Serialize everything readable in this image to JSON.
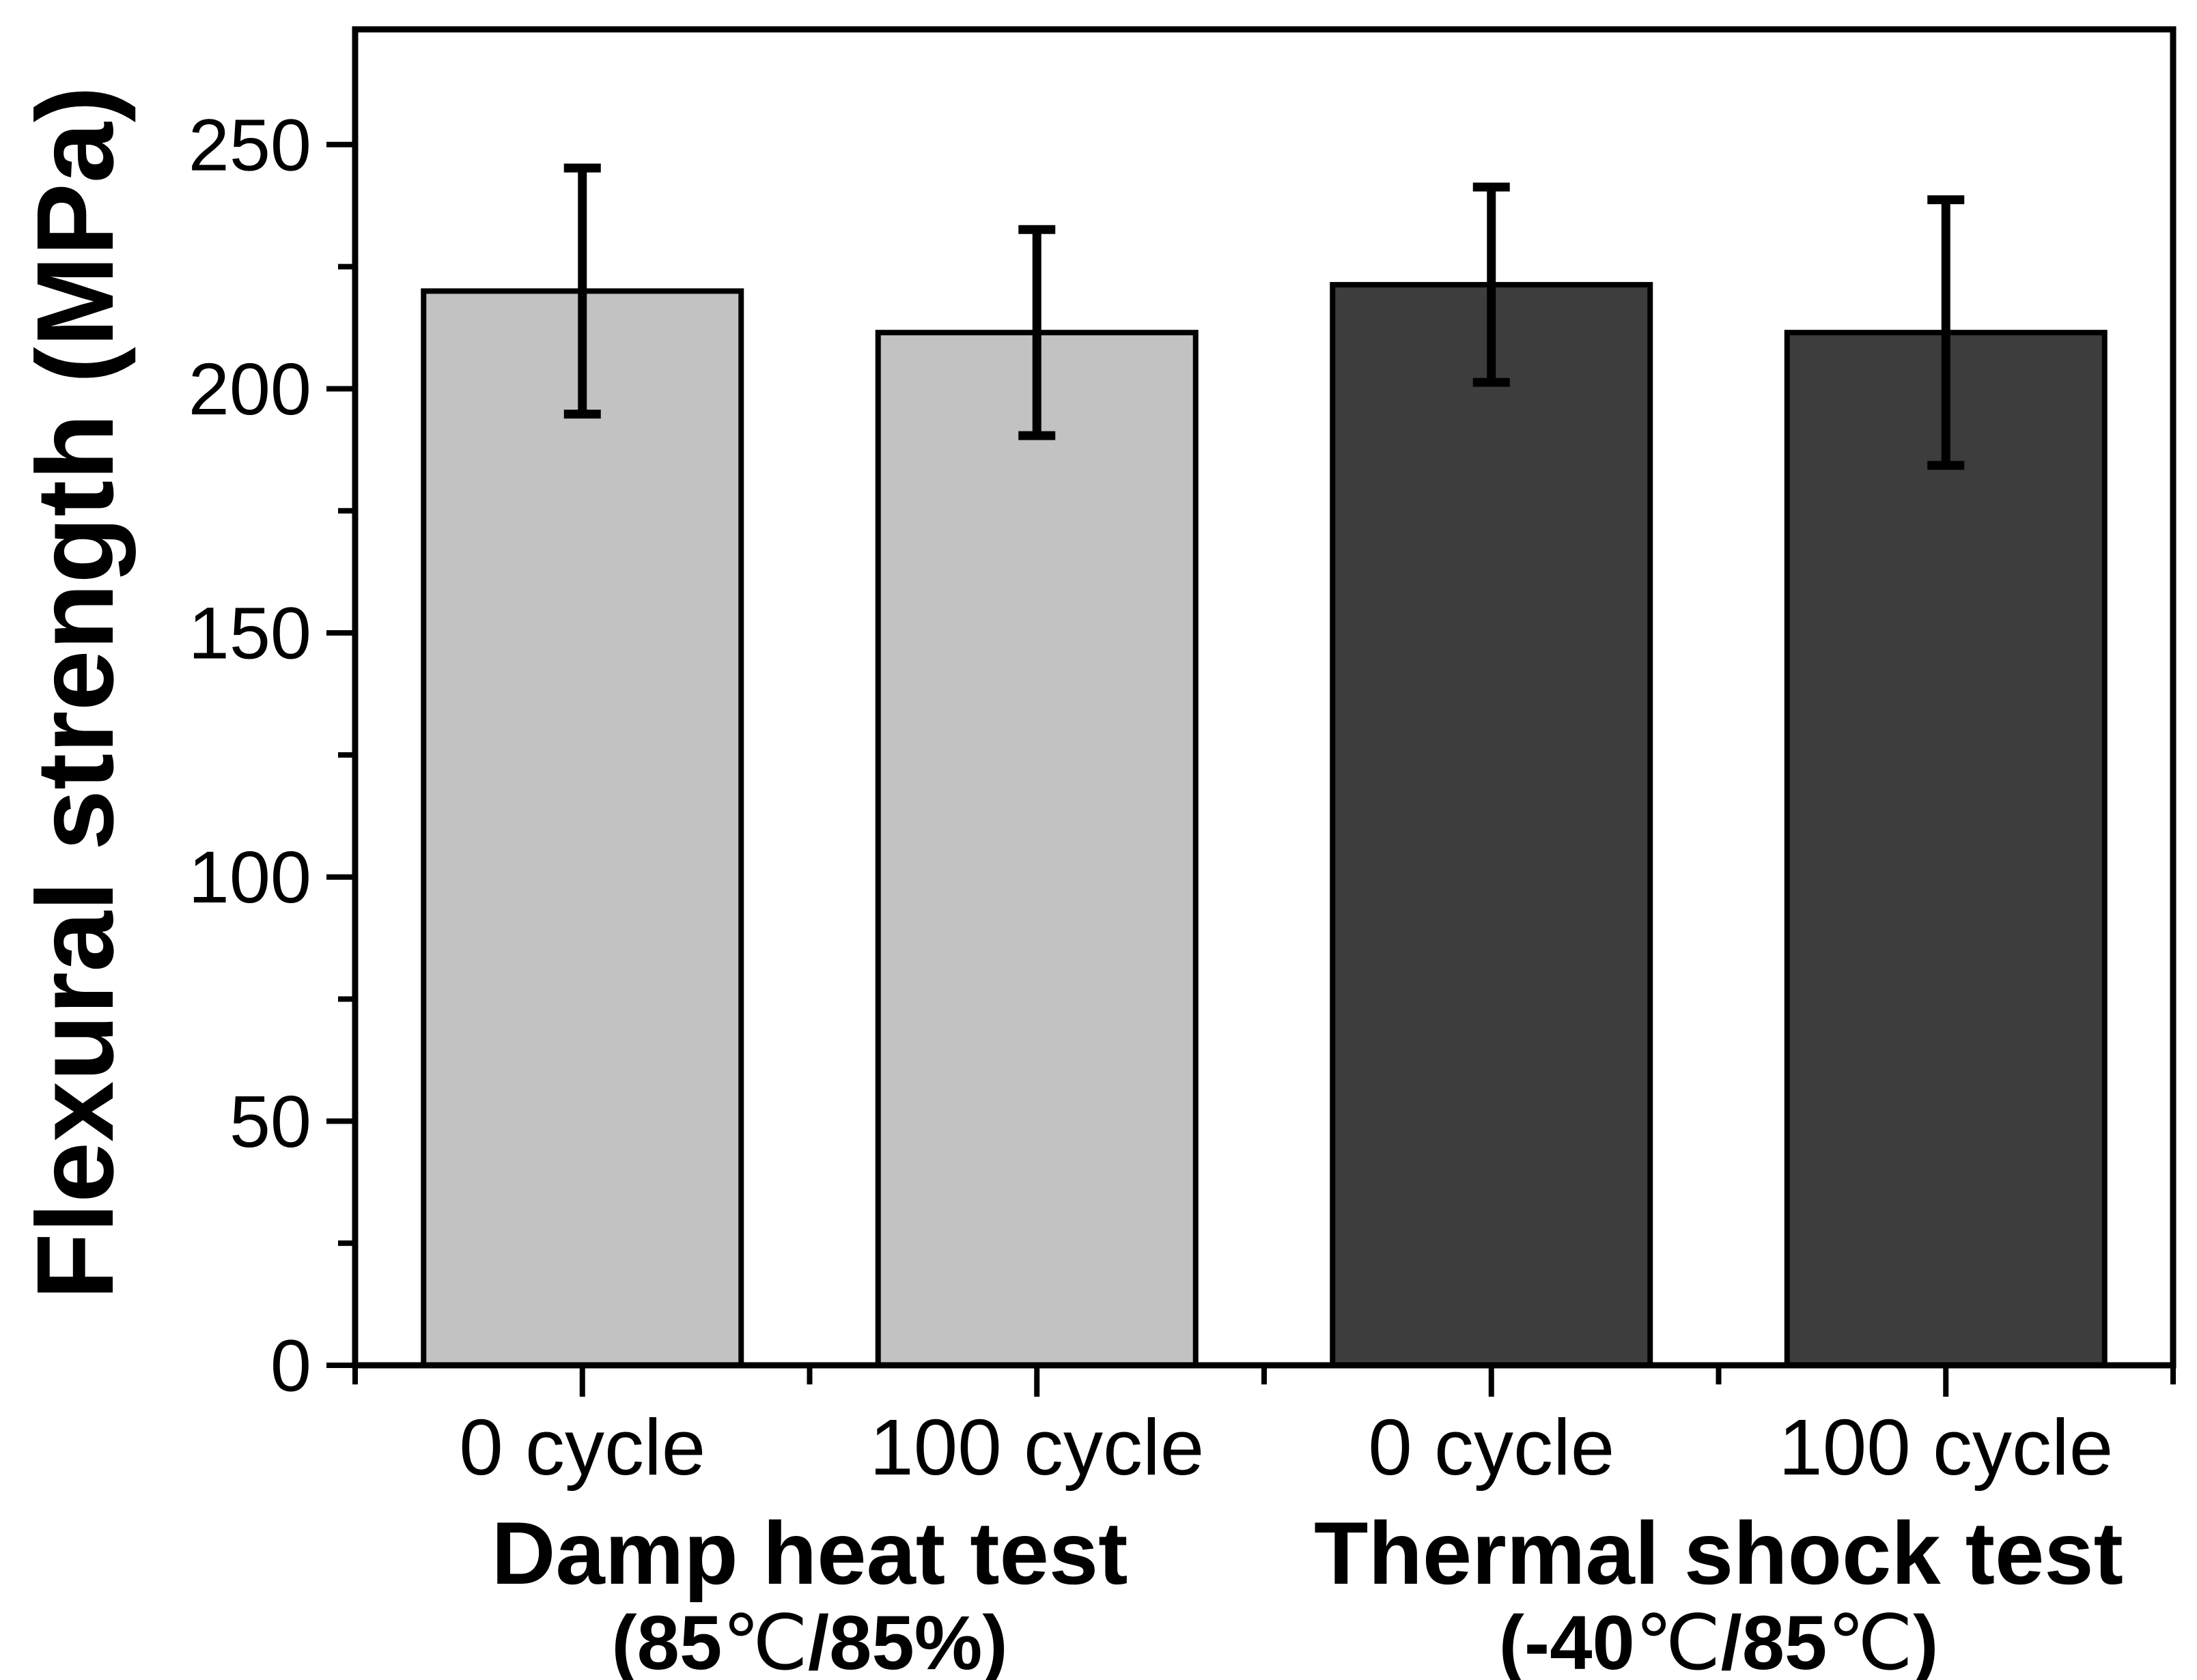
{
  "chart_data": {
    "type": "bar",
    "title": "",
    "ylabel": "Flexural strength (MPa)",
    "xlabel": "",
    "ylim": [
      0,
      273.6
    ],
    "y_major_ticks": [
      0,
      50,
      100,
      150,
      200,
      250
    ],
    "y_minor_ticks": [
      25,
      75,
      125,
      175,
      225
    ],
    "grid": false,
    "legend": false,
    "background": "#ffffff",
    "axis_color": "#000000",
    "error_bar_color": "#000000",
    "categories": [
      "0 cycle",
      "100 cycle",
      "0 cycle",
      "100 cycle"
    ],
    "bars": [
      {
        "category": "0 cycle",
        "value": 220.0,
        "error": 25.2,
        "fill": "#c2c2c2",
        "group": "Damp heat test"
      },
      {
        "category": "100 cycle",
        "value": 211.5,
        "error": 21.1,
        "fill": "#c2c2c2",
        "group": "Damp heat test"
      },
      {
        "category": "0 cycle",
        "value": 221.3,
        "error": 20.0,
        "fill": "#3d3d3d",
        "group": "Thermal shock test"
      },
      {
        "category": "100 cycle",
        "value": 211.5,
        "error": 27.2,
        "fill": "#3d3d3d",
        "group": "Thermal shock test"
      }
    ],
    "groups": [
      {
        "label": "Damp heat test",
        "sublabel": "(85℃/85%)",
        "start": 0,
        "end": 2
      },
      {
        "label": "Thermal shock test",
        "sublabel": "(-40℃/85℃)",
        "start": 2,
        "end": 4
      }
    ]
  }
}
